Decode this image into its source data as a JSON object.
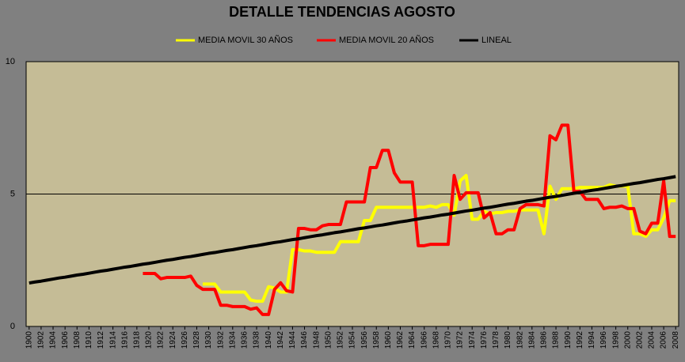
{
  "chart_data": {
    "type": "line",
    "title": "DETALLE TENDENCIAS AGOSTO",
    "x": [
      1900,
      1901,
      1902,
      1903,
      1904,
      1905,
      1906,
      1907,
      1908,
      1909,
      1910,
      1911,
      1912,
      1913,
      1914,
      1915,
      1916,
      1917,
      1918,
      1919,
      1920,
      1921,
      1922,
      1923,
      1924,
      1925,
      1926,
      1927,
      1928,
      1929,
      1930,
      1931,
      1932,
      1933,
      1934,
      1935,
      1936,
      1937,
      1938,
      1939,
      1940,
      1941,
      1942,
      1943,
      1944,
      1945,
      1946,
      1947,
      1948,
      1949,
      1950,
      1951,
      1952,
      1953,
      1954,
      1955,
      1956,
      1957,
      1958,
      1959,
      1960,
      1961,
      1962,
      1963,
      1964,
      1965,
      1966,
      1967,
      1968,
      1969,
      1970,
      1971,
      1972,
      1973,
      1974,
      1975,
      1976,
      1977,
      1978,
      1979,
      1980,
      1981,
      1982,
      1983,
      1984,
      1985,
      1986,
      1987,
      1988,
      1989,
      1990,
      1991,
      1992,
      1993,
      1994,
      1995,
      1996,
      1997,
      1998,
      1999,
      2000,
      2001,
      2002,
      2003,
      2004,
      2005,
      2006,
      2007,
      2008
    ],
    "series": [
      {
        "name": "MEDIA MOVIL 30 AÑOS",
        "color": "#ffff00",
        "values": [
          null,
          null,
          null,
          null,
          null,
          null,
          null,
          null,
          null,
          null,
          null,
          null,
          null,
          null,
          null,
          null,
          null,
          null,
          null,
          null,
          null,
          null,
          null,
          null,
          null,
          null,
          null,
          null,
          null,
          1.6,
          1.6,
          1.6,
          1.3,
          1.3,
          1.3,
          1.3,
          1.3,
          1.0,
          0.95,
          0.95,
          1.5,
          1.45,
          1.3,
          1.3,
          2.9,
          2.9,
          2.85,
          2.85,
          2.8,
          2.8,
          2.8,
          2.8,
          3.2,
          3.2,
          3.2,
          3.2,
          4.0,
          4.0,
          4.5,
          4.5,
          4.5,
          4.5,
          4.5,
          4.5,
          4.5,
          4.5,
          4.5,
          4.55,
          4.5,
          4.6,
          4.6,
          4.2,
          5.5,
          5.7,
          4.05,
          4.05,
          4.35,
          4.25,
          4.3,
          4.3,
          4.35,
          4.35,
          4.4,
          4.4,
          4.4,
          4.4,
          3.5,
          5.3,
          4.8,
          5.2,
          5.2,
          5.2,
          5.25,
          5.25,
          5.25,
          5.25,
          5.25,
          5.35,
          5.3,
          5.3,
          5.3,
          3.5,
          3.5,
          3.4,
          3.65,
          3.65,
          4.1,
          4.75,
          4.75
        ]
      },
      {
        "name": "MEDIA MOVIL 20 AÑOS",
        "color": "#ff0000",
        "values": [
          null,
          null,
          null,
          null,
          null,
          null,
          null,
          null,
          null,
          null,
          null,
          null,
          null,
          null,
          null,
          null,
          null,
          null,
          null,
          2.0,
          2.0,
          2.0,
          1.8,
          1.85,
          1.85,
          1.85,
          1.85,
          1.9,
          1.55,
          1.4,
          1.4,
          1.4,
          0.8,
          0.8,
          0.75,
          0.75,
          0.75,
          0.65,
          0.7,
          0.45,
          0.45,
          1.4,
          1.65,
          1.35,
          1.3,
          3.7,
          3.7,
          3.65,
          3.65,
          3.8,
          3.85,
          3.85,
          3.85,
          4.7,
          4.7,
          4.7,
          4.7,
          6.0,
          6.0,
          6.65,
          6.65,
          5.8,
          5.45,
          5.45,
          5.45,
          3.05,
          3.05,
          3.1,
          3.1,
          3.1,
          3.1,
          5.7,
          4.8,
          5.05,
          5.05,
          5.05,
          4.1,
          4.3,
          3.5,
          3.5,
          3.65,
          3.65,
          4.45,
          4.6,
          4.6,
          4.6,
          4.55,
          7.2,
          7.05,
          7.6,
          7.6,
          5.1,
          5.1,
          4.8,
          4.8,
          4.8,
          4.45,
          4.5,
          4.5,
          4.55,
          4.45,
          4.45,
          3.6,
          3.5,
          3.9,
          3.9,
          5.5,
          3.4,
          3.4
        ]
      },
      {
        "name": "LINEAL",
        "color": "#000000",
        "values": [
          1.64,
          1.68,
          1.71,
          1.75,
          1.79,
          1.83,
          1.86,
          1.9,
          1.94,
          1.97,
          2.01,
          2.05,
          2.09,
          2.12,
          2.16,
          2.2,
          2.24,
          2.27,
          2.31,
          2.35,
          2.38,
          2.42,
          2.46,
          2.5,
          2.53,
          2.57,
          2.61,
          2.64,
          2.68,
          2.72,
          2.76,
          2.79,
          2.83,
          2.87,
          2.9,
          2.94,
          2.98,
          3.02,
          3.05,
          3.09,
          3.13,
          3.17,
          3.2,
          3.24,
          3.28,
          3.31,
          3.35,
          3.39,
          3.43,
          3.46,
          3.5,
          3.54,
          3.57,
          3.61,
          3.65,
          3.69,
          3.72,
          3.76,
          3.8,
          3.83,
          3.87,
          3.91,
          3.95,
          3.98,
          4.02,
          4.06,
          4.1,
          4.13,
          4.17,
          4.21,
          4.24,
          4.28,
          4.32,
          4.36,
          4.39,
          4.43,
          4.47,
          4.5,
          4.54,
          4.58,
          4.62,
          4.65,
          4.69,
          4.73,
          4.76,
          4.8,
          4.84,
          4.88,
          4.91,
          4.95,
          4.99,
          5.03,
          5.06,
          5.1,
          5.14,
          5.17,
          5.21,
          5.25,
          5.29,
          5.32,
          5.36,
          5.4,
          5.43,
          5.47,
          5.51,
          5.55,
          5.58,
          5.62,
          5.66
        ]
      }
    ],
    "xlim": [
      1899.5,
      2008.5
    ],
    "xticks": [
      1900,
      1902,
      1904,
      1906,
      1908,
      1910,
      1912,
      1914,
      1916,
      1918,
      1920,
      1922,
      1924,
      1926,
      1928,
      1930,
      1932,
      1934,
      1936,
      1938,
      1940,
      1942,
      1944,
      1946,
      1948,
      1950,
      1952,
      1954,
      1956,
      1958,
      1960,
      1962,
      1964,
      1966,
      1968,
      1970,
      1972,
      1974,
      1976,
      1978,
      1980,
      1982,
      1984,
      1986,
      1988,
      1990,
      1992,
      1994,
      1996,
      1998,
      2000,
      2002,
      2004,
      2006,
      2008
    ],
    "ylim": [
      0,
      10
    ],
    "yticks": [
      0,
      5,
      10
    ],
    "grid": true
  }
}
